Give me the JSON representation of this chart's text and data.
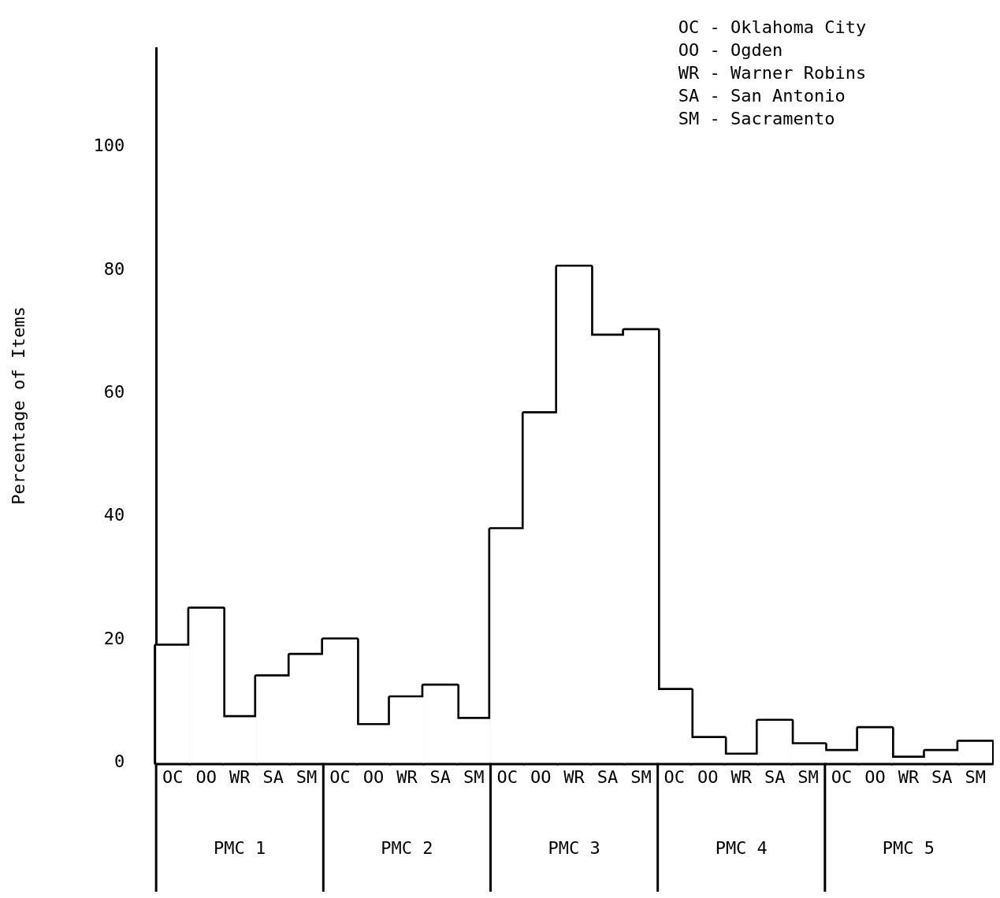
{
  "chart_data": {
    "type": "bar",
    "ylabel": "Percentage of Items",
    "categories": [
      "OC",
      "OO",
      "WR",
      "SA",
      "SM",
      "OC",
      "OO",
      "WR",
      "SA",
      "SM",
      "OC",
      "OO",
      "WR",
      "SA",
      "SM",
      "OC",
      "OO",
      "WR",
      "SA",
      "SM",
      "OC",
      "OO",
      "WR",
      "SA",
      "SM"
    ],
    "values": [
      19,
      25,
      7.4,
      14,
      17.5,
      20,
      6.1,
      10.6,
      12.5,
      7.1,
      37.9,
      56.7,
      80.5,
      69.3,
      70.2,
      11.8,
      4,
      1.3,
      6.8,
      3,
      1.9,
      5.6,
      0.8,
      1.9,
      3.4
    ],
    "color": "#ffffff",
    "ylim": [
      0,
      116
    ],
    "yticks": [
      0,
      20,
      40,
      60,
      80,
      100
    ],
    "grid": false,
    "legend": false,
    "annotations": [
      "OC - Oklahoma City",
      "OO - Ogden",
      "WR - Warner Robins",
      "SA - San Antonio",
      "SM - Sacramento",
      "PMC 1",
      "PMC 2",
      "PMC 3",
      "PMC 4",
      "PMC 5"
    ]
  }
}
